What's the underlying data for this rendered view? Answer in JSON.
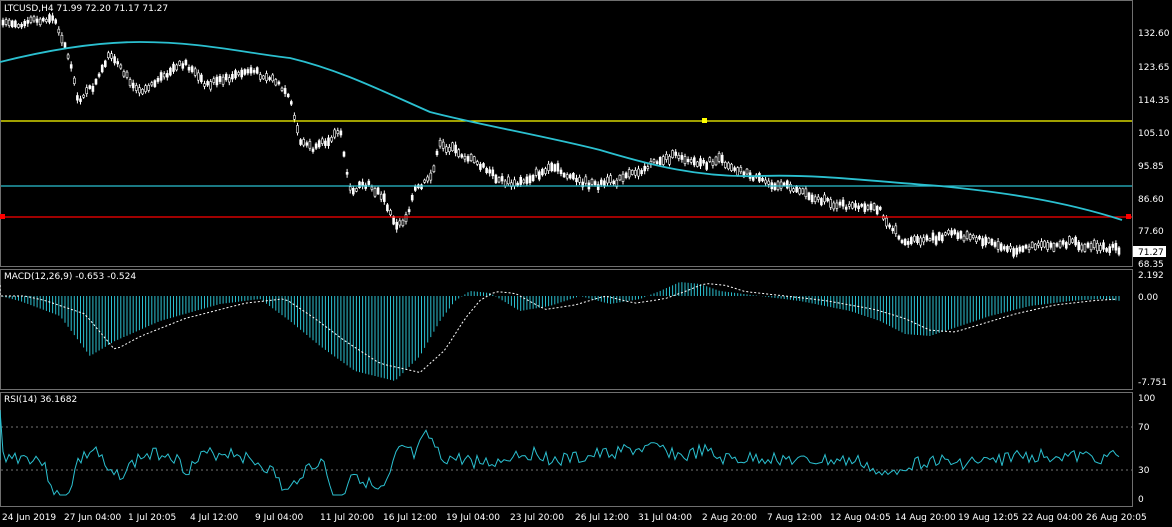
{
  "price_panel": {
    "symbol_line": "LTCUSD,H4  71.99 72.20 71.17 71.27",
    "price_axis_labels": [
      "132.60",
      "123.65",
      "114.35",
      "105.10",
      "95.85",
      "86.60",
      "77.60",
      "68.35"
    ],
    "current_price_label": "71.27",
    "colors": {
      "ma": "#2bc0d0",
      "yellow_line": "#ffff00",
      "red_line": "#ff0000",
      "cyan_line": "#2bc0d0",
      "candles": "#ffffff",
      "grid": "#6f6f6f"
    }
  },
  "macd_panel": {
    "label": "MACD(12,26,9) -0.653 -0.524",
    "axis_labels": [
      "2.192",
      "0.00",
      "-7.751"
    ],
    "colors": {
      "histogram": "#2bc0d0",
      "signal": "#ffffff"
    }
  },
  "rsi_panel": {
    "label": "RSI(14) 36.1682",
    "axis_labels": [
      "100",
      "70",
      "30",
      "0"
    ],
    "colors": {
      "line": "#2bc0d0",
      "levels": "#9a9a9a"
    }
  },
  "time_axis_labels": [
    "24 Jun 2019",
    "27 Jun 04:00",
    "1 Jul 20:05",
    "4 Jul 12:00",
    "9 Jul 04:00",
    "11 Jul 20:00",
    "16 Jul 12:00",
    "19 Jul 04:00",
    "23 Jul 20:00",
    "26 Jul 12:00",
    "31 Jul 04:00",
    "2 Aug 20:00",
    "7 Aug 12:00",
    "12 Aug 04:05",
    "14 Aug 20:00",
    "19 Aug 12:05",
    "22 Aug 04:00",
    "26 Aug 20:05"
  ]
}
